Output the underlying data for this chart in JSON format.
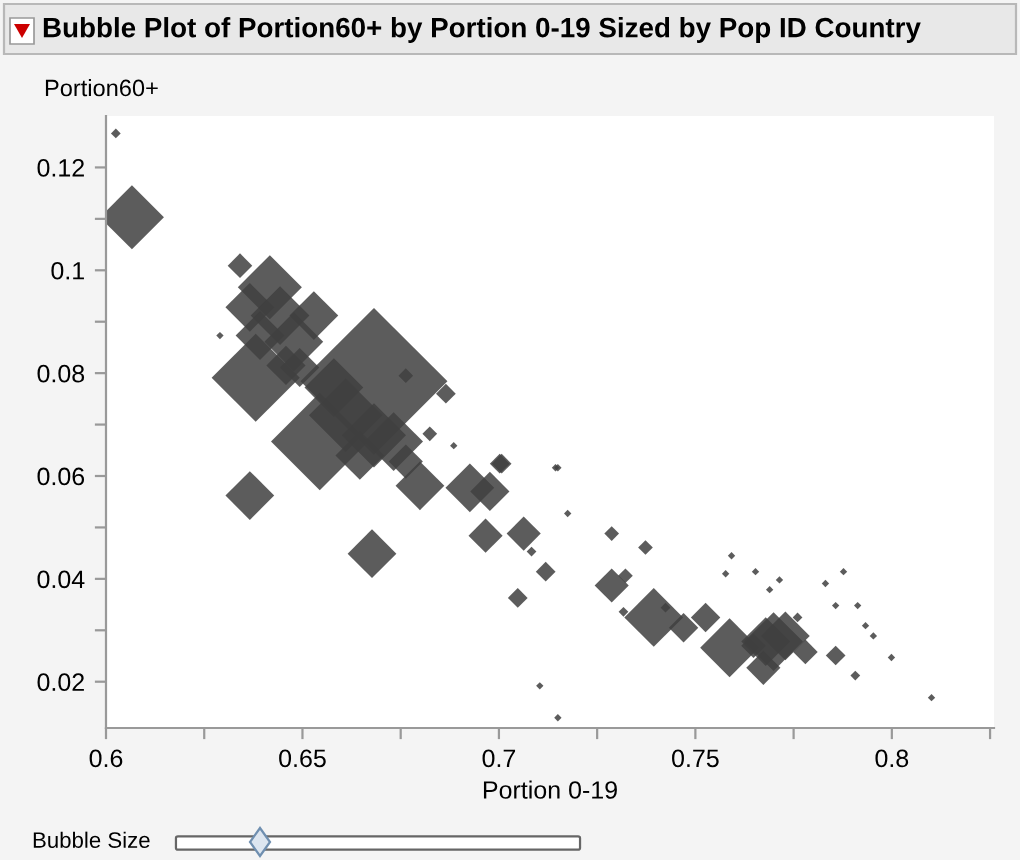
{
  "chart_data": {
    "type": "bubble",
    "title": "Bubble Plot of Portion60+ by Portion 0-19 Sized by Pop ID Country",
    "xlabel": "Portion 0-19",
    "ylabel": "Portion60+",
    "annotations": [
      "Bubble Size"
    ],
    "series": [
      {
        "color": "#404040",
        "x": [
          0.6025,
          0.6066,
          0.6341,
          0.6417,
          0.6366,
          0.6443,
          0.6529,
          0.6392,
          0.6478,
          0.629,
          0.6381,
          0.6493,
          0.6458,
          0.6763,
          0.6865,
          0.6682,
          0.658,
          0.661,
          0.6544,
          0.6682,
          0.6732,
          0.6646,
          0.6763,
          0.6824,
          0.6885,
          0.7002,
          0.7144,
          0.6799,
          0.6926,
          0.6366,
          0.6677,
          0.6966,
          0.7007,
          0.6977,
          0.7063,
          0.7083,
          0.7119,
          0.7048,
          0.715,
          0.7175,
          0.7104,
          0.715,
          0.7287,
          0.7373,
          0.7287,
          0.7322,
          0.7317,
          0.7394,
          0.7424,
          0.747,
          0.7526,
          0.7587,
          0.7648,
          0.7679,
          0.7699,
          0.7729,
          0.7673,
          0.778,
          0.7857,
          0.7907,
          0.7999,
          0.8101,
          0.7592,
          0.7577,
          0.7653,
          0.7714,
          0.7689,
          0.7831,
          0.7877,
          0.7857,
          0.7913,
          0.7933,
          0.7953,
          0.776
        ],
        "values": [
          0.1266,
          0.1103,
          0.1009,
          0.0967,
          0.0928,
          0.0912,
          0.0912,
          0.0873,
          0.0861,
          0.0873,
          0.0791,
          0.0811,
          0.0815,
          0.0795,
          0.076,
          0.0784,
          0.0772,
          0.0718,
          0.0667,
          0.0679,
          0.0667,
          0.064,
          0.0628,
          0.0682,
          0.0659,
          0.0624,
          0.0616,
          0.0581,
          0.0577,
          0.0562,
          0.0449,
          0.0484,
          0.0624,
          0.057,
          0.0488,
          0.0453,
          0.0414,
          0.0363,
          0.0616,
          0.0527,
          0.0192,
          0.013,
          0.0488,
          0.0461,
          0.0387,
          0.0406,
          0.0336,
          0.0325,
          0.0344,
          0.0305,
          0.0325,
          0.0266,
          0.027,
          0.0278,
          0.0278,
          0.0289,
          0.0227,
          0.0258,
          0.0251,
          0.0212,
          0.0247,
          0.0169,
          0.0445,
          0.041,
          0.0414,
          0.0398,
          0.0379,
          0.0391,
          0.0414,
          0.0348,
          0.0348,
          0.0309,
          0.0289,
          0.0325
        ],
        "sizes": [
          0.0044,
          0.19,
          0.028,
          0.19,
          0.11,
          0.16,
          0.11,
          0.11,
          0.16,
          0.0025,
          0.36,
          0.071,
          0.071,
          0.01,
          0.018,
          1,
          0.16,
          0.25,
          0.44,
          0.19,
          0.16,
          0.11,
          0.054,
          0.01,
          0.0025,
          0.018,
          0.0025,
          0.11,
          0.11,
          0.11,
          0.11,
          0.054,
          0.018,
          0.071,
          0.054,
          0.0044,
          0.018,
          0.018,
          0.0025,
          0.0025,
          0.0025,
          0.0025,
          0.01,
          0.01,
          0.054,
          0.01,
          0.0044,
          0.16,
          0.0044,
          0.04,
          0.04,
          0.16,
          0.028,
          0.11,
          0.16,
          0.11,
          0.054,
          0.028,
          0.018,
          0.0044,
          0.0025,
          0.0025,
          0.0025,
          0.0025,
          0.0025,
          0.0025,
          0.0025,
          0.0025,
          0.0025,
          0.0025,
          0.0025,
          0.0025,
          0.0025,
          0.0044
        ]
      }
    ],
    "marker": "diamond",
    "grid": false,
    "xlim": [
      0.6,
      0.826
    ],
    "ylim": [
      0.011,
      0.13
    ],
    "xticks": [
      0.6,
      {
        "value": 0.625,
        "label": null
      },
      0.65,
      {
        "value": 0.675,
        "label": null
      },
      0.7,
      {
        "value": 0.725,
        "label": null
      },
      0.75,
      {
        "value": 0.775,
        "label": null
      },
      0.8,
      {
        "value": 0.825,
        "label": null
      }
    ],
    "yticks": [
      0.02,
      {
        "value": 0.03,
        "label": null
      },
      0.04,
      {
        "value": 0.05,
        "label": null
      },
      0.06,
      {
        "value": 0.07,
        "label": null
      },
      0.08,
      {
        "value": 0.09,
        "label": null
      },
      0.1,
      {
        "value": 0.11,
        "label": null
      },
      0.12
    ]
  }
}
